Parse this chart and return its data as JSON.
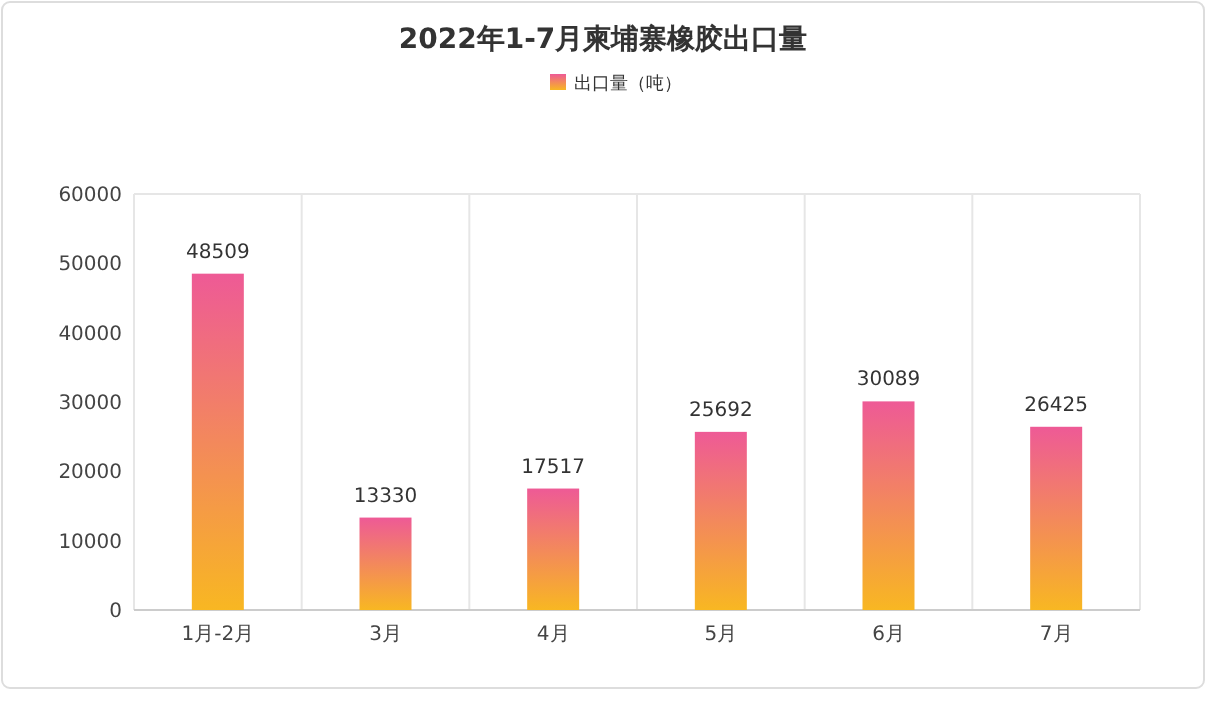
{
  "chart_data": {
    "type": "bar",
    "title": "2022年1-7月柬埔寨橡胶出口量",
    "categories": [
      "1月-2月",
      "3月",
      "4月",
      "5月",
      "6月",
      "7月"
    ],
    "series": [
      {
        "name": "出口量（吨）",
        "color": "#ee5a96",
        "values": [
          48509,
          13330,
          17517,
          25692,
          30089,
          26425
        ]
      }
    ],
    "ylim": [
      0,
      60000
    ],
    "yticks": [
      0,
      10000,
      20000,
      30000,
      40000,
      50000,
      60000
    ],
    "grid": "x",
    "legend": "top",
    "data_labels": true
  }
}
